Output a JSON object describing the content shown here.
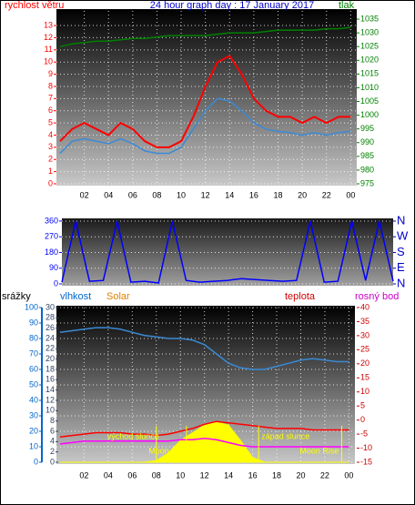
{
  "chart_data": [
    {
      "type": "line",
      "title": "24 hour graph day : 17 January 2017",
      "ylabel": "rychlost větru",
      "y2label": "tlak",
      "x": [
        0,
        1,
        2,
        3,
        4,
        5,
        6,
        7,
        8,
        9,
        10,
        11,
        12,
        13,
        14,
        15,
        16,
        17,
        18,
        19,
        20,
        21,
        22,
        23,
        24
      ],
      "xlim": [
        -0.3,
        24.5
      ],
      "xticks": [
        {
          "value": 2,
          "label": "02"
        },
        {
          "value": 4,
          "label": "04"
        },
        {
          "value": 6,
          "label": "06"
        },
        {
          "value": 8,
          "label": "08"
        },
        10,
        12,
        14,
        16,
        18,
        20,
        22,
        {
          "value": 24,
          "label": "00"
        }
      ],
      "ylim": [
        0,
        14.2
      ],
      "yticks": [
        0,
        1,
        2,
        3,
        4,
        5,
        6,
        7,
        8,
        9,
        10,
        11,
        12,
        13
      ],
      "y2lim": [
        975,
        1038
      ],
      "y2ticks": [
        975,
        980,
        985,
        990,
        995,
        1000,
        1005,
        1010,
        1015,
        1020,
        1025,
        1030,
        1035
      ],
      "grid": true,
      "series": [
        {
          "color": "#ff0000",
          "axis": "y",
          "values": [
            3.5,
            4.5,
            5,
            4.5,
            4,
            5,
            4.5,
            3.5,
            3,
            3,
            3.5,
            5.5,
            8,
            10,
            10.5,
            9,
            7,
            6,
            5.5,
            5.5,
            5,
            5.5,
            5,
            5.5,
            5.5
          ]
        },
        {
          "color": "#3a8ad6",
          "axis": "y",
          "values": [
            2.5,
            3.5,
            3.7,
            3.5,
            3.3,
            3.7,
            3.3,
            2.7,
            2.5,
            2.5,
            3,
            4.5,
            6,
            7,
            6.8,
            6,
            5,
            4.5,
            4.3,
            4.2,
            4,
            4.2,
            4,
            4.2,
            4.3
          ]
        },
        {
          "color": "#008000",
          "axis": "y2",
          "values": [
            1025,
            1026,
            1026.5,
            1027,
            1027,
            1027.5,
            1028,
            1028,
            1028.5,
            1029,
            1029,
            1029,
            1029,
            1029.5,
            1030,
            1030,
            1030,
            1030.5,
            1031,
            1031,
            1031,
            1031,
            1031.5,
            1031.5,
            1032
          ]
        }
      ]
    },
    {
      "type": "line",
      "x": [
        0,
        1,
        2,
        3,
        4,
        5,
        6,
        7,
        8,
        9,
        10,
        11,
        12,
        13,
        14,
        15,
        16,
        17,
        18,
        19,
        20,
        21,
        22,
        23,
        24
      ],
      "xlim": [
        0,
        24
      ],
      "ylim": [
        0,
        365
      ],
      "yticks": [
        0,
        90,
        180,
        270,
        360
      ],
      "y2lim": [
        0,
        365
      ],
      "y2ticks": [
        {
          "value": 360,
          "label": "N"
        },
        {
          "value": 270,
          "label": "W"
        },
        {
          "value": 180,
          "label": "S"
        },
        {
          "value": 90,
          "label": "E"
        },
        {
          "value": 0,
          "label": "N"
        }
      ],
      "grid": true,
      "series": [
        {
          "color": "#0000ff",
          "axis": "y",
          "values": [
            10,
            360,
            15,
            20,
            360,
            10,
            15,
            5,
            360,
            20,
            10,
            15,
            20,
            30,
            25,
            20,
            15,
            20,
            360,
            10,
            15,
            360,
            20,
            360,
            15
          ]
        }
      ]
    },
    {
      "type": "line",
      "ylabel": "srážky",
      "y3label": "vlhkost",
      "solarlabel": "Solar",
      "y2label": "teplota",
      "dewlabel": "rosný bod",
      "x": [
        0,
        1,
        2,
        3,
        4,
        5,
        6,
        7,
        8,
        9,
        10,
        11,
        12,
        13,
        14,
        15,
        16,
        17,
        18,
        19,
        20,
        21,
        22,
        23,
        24
      ],
      "xlim": [
        -0.3,
        24.5
      ],
      "xticks": [
        {
          "value": 2,
          "label": "02"
        },
        {
          "value": 4,
          "label": "04"
        },
        {
          "value": 6,
          "label": "06"
        },
        {
          "value": 8,
          "label": "08"
        },
        10,
        12,
        14,
        16,
        18,
        20,
        22,
        {
          "value": 24,
          "label": "00"
        }
      ],
      "ylim": [
        0,
        100
      ],
      "yticks": [
        0,
        10,
        20,
        30,
        40,
        50,
        60,
        70,
        80,
        90,
        100
      ],
      "y3lim": [
        0,
        30
      ],
      "y3ticks": [
        0,
        2,
        4,
        6,
        8,
        10,
        12,
        14,
        16,
        18,
        20,
        22,
        24,
        26,
        28,
        30
      ],
      "y2lim": [
        -15,
        40
      ],
      "y2ticks": [
        -15,
        -10,
        -5,
        0,
        5,
        10,
        15,
        20,
        25,
        30,
        35,
        40
      ],
      "grid": true,
      "series": [
        {
          "color": "#ffff00",
          "axis": "y",
          "style": "area",
          "values": [
            0,
            0,
            0,
            0,
            0,
            0,
            0,
            0,
            1,
            6,
            14,
            19,
            24,
            26,
            24,
            14,
            3,
            0,
            0,
            0,
            0,
            0,
            0,
            0,
            0
          ]
        },
        {
          "color": "#3a8ad6",
          "axis": "y",
          "values": [
            84,
            85,
            86,
            87,
            87,
            86,
            84,
            82,
            81,
            80,
            80,
            79,
            76,
            70,
            64,
            61,
            60,
            60,
            62,
            64,
            66,
            67,
            66,
            65,
            65
          ]
        },
        {
          "color": "#ff0000",
          "axis": "y2",
          "values": [
            -6,
            -5.5,
            -5,
            -4.5,
            -4.5,
            -4.5,
            -5,
            -5,
            -5.5,
            -5,
            -4,
            -3,
            -1.5,
            -0.5,
            -1,
            -1.5,
            -2,
            -2.5,
            -3,
            -3,
            -3,
            -3.5,
            -3.5,
            -3.5,
            -3.5
          ]
        },
        {
          "color": "#ff00ff",
          "axis": "y2",
          "values": [
            -8.5,
            -8,
            -7.5,
            -7.5,
            -7.5,
            -7.5,
            -7.5,
            -7.5,
            -7.5,
            -7.5,
            -7,
            -7,
            -6.5,
            -7,
            -8,
            -9,
            -9.5,
            -9.5,
            -9.5,
            -9.5,
            -9.5,
            -9.5,
            -9.5,
            -9.5,
            -9.5
          ]
        }
      ],
      "annotations": [
        {
          "text": "východ slunce",
          "x": 8.0
        },
        {
          "text": "západ slunce",
          "x": 16.5
        },
        {
          "text": "Moon Set",
          "x": 10.5
        },
        {
          "text": "Moon Rise",
          "x": 23.4
        }
      ]
    }
  ]
}
